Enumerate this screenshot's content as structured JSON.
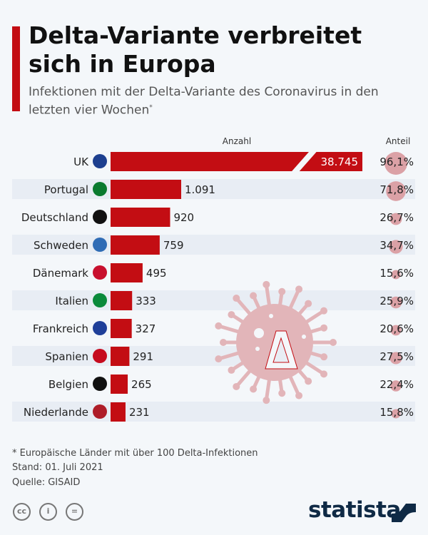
{
  "title": "Delta-Variante verbreitet sich in Europa",
  "subtitle": "Infektionen mit der Delta-Variante des Coronavirus in den letzten vier Wochen",
  "subtitle_mark": "*",
  "colors": {
    "accent": "#c30d13",
    "bubble": "#dba1a6",
    "virus": "#e2b5b9",
    "row_shade": "#e8edf4"
  },
  "chart_data": {
    "type": "bar",
    "orientation": "horizontal",
    "column_headers": {
      "count": "Anzahl",
      "share": "Anteil"
    },
    "categories": [
      "UK",
      "Portugal",
      "Deutschland",
      "Schweden",
      "Dänemark",
      "Italien",
      "Frankreich",
      "Spanien",
      "Belgien",
      "Niederlande"
    ],
    "flags": [
      "uk-flag",
      "portugal-flag",
      "germany-flag",
      "sweden-flag",
      "denmark-flag",
      "italy-flag",
      "france-flag",
      "spain-flag",
      "belgium-flag",
      "netherlands-flag"
    ],
    "values": [
      38745,
      1091,
      920,
      759,
      495,
      333,
      327,
      291,
      265,
      231
    ],
    "value_labels": [
      "38.745",
      "1.091",
      "920",
      "759",
      "495",
      "333",
      "327",
      "291",
      "265",
      "231"
    ],
    "share": [
      96.1,
      71.8,
      26.7,
      34.7,
      15.6,
      25.9,
      20.6,
      27.5,
      22.4,
      15.8
    ],
    "share_labels": [
      "96,1%",
      "71,8%",
      "26,7%",
      "34,7%",
      "15,6%",
      "25,9%",
      "20,6%",
      "27,5%",
      "22,4%",
      "15,8%"
    ],
    "axis_break": "UK bar truncated"
  },
  "footer": {
    "note": "* Europäische Länder mit über 100 Delta-Infektionen",
    "date": "Stand: 01. Juli 2021",
    "source": "Quelle: GISAID",
    "brand": "statista"
  }
}
